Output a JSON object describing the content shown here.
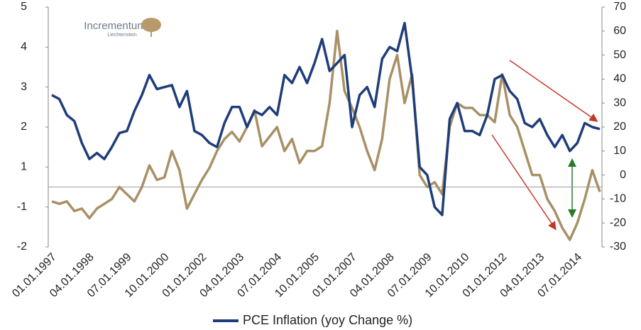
{
  "logo_text": "Incrementum",
  "logo_subtext": "Liechtenstein",
  "chart_data": {
    "type": "line",
    "categories": [
      "01.01.1997",
      null,
      null,
      null,
      null,
      "04.01.1998",
      null,
      null,
      null,
      null,
      "07.01.1999",
      null,
      null,
      null,
      null,
      "10.01.2000",
      null,
      null,
      null,
      null,
      "01.01.2002",
      null,
      null,
      null,
      null,
      "04.01.2003",
      null,
      null,
      null,
      null,
      "07.01.2004",
      null,
      null,
      null,
      null,
      "10.01.2005",
      null,
      null,
      null,
      null,
      "01.01.2007",
      null,
      null,
      null,
      null,
      "04.01.2008",
      null,
      null,
      null,
      null,
      "07.01.2009",
      null,
      null,
      null,
      null,
      "10.01.2010",
      null,
      null,
      null,
      null,
      "01.01.2012",
      null,
      null,
      null,
      null,
      "04.01.2013",
      null,
      null,
      null,
      null,
      "07.01.2014",
      null,
      null,
      null
    ],
    "series": [
      {
        "name": "PCE Inflation (yoy Change %)",
        "color": "#1f3d7a",
        "values": [
          2.8,
          2.7,
          2.3,
          2.15,
          1.6,
          1.2,
          1.35,
          1.2,
          1.5,
          1.85,
          1.9,
          2.4,
          2.8,
          3.3,
          2.95,
          3.0,
          3.05,
          2.5,
          2.9,
          1.9,
          1.8,
          1.6,
          1.5,
          2.1,
          2.5,
          2.5,
          2.0,
          2.4,
          2.3,
          2.5,
          2.3,
          3.3,
          3.1,
          3.5,
          3.1,
          3.6,
          4.2,
          3.4,
          3.6,
          3.8,
          2.0,
          2.8,
          3.0,
          2.5,
          3.7,
          4.0,
          3.9,
          4.6,
          3.2,
          1.0,
          0.6,
          -1.0,
          -1.2,
          2.2,
          2.6,
          1.9,
          1.9,
          1.8,
          2.3,
          3.2,
          3.3,
          2.9,
          2.7,
          2.1,
          2.0,
          2.2,
          1.8,
          1.5,
          1.8,
          1.4,
          1.6,
          2.1,
          2.0,
          1.95
        ]
      },
      {
        "color": "#a89066",
        "axis": "y2",
        "values": [
          -11,
          -12,
          -11,
          -15,
          -14,
          -18,
          -14,
          -12,
          -10,
          -5,
          -8,
          -11,
          -5,
          4,
          -2,
          -1,
          10,
          2,
          -14,
          -8,
          -2,
          3,
          10,
          15,
          18,
          14,
          20,
          27,
          12,
          16,
          20,
          10,
          15,
          5,
          10,
          10,
          12,
          30,
          60,
          35,
          28,
          20,
          10,
          2,
          15,
          40,
          50,
          30,
          42,
          0,
          -5,
          -3,
          -8,
          20,
          30,
          28,
          28,
          25,
          25,
          22,
          42,
          25,
          20,
          10,
          0,
          0,
          -10,
          -15,
          -22,
          -27,
          -20,
          -10,
          2,
          -7
        ]
      }
    ],
    "ylim": [
      -2,
      5
    ],
    "yticks": [
      5,
      4,
      3,
      2,
      1,
      -1,
      -2
    ],
    "y2lim": [
      -30,
      70
    ],
    "y2ticks": [
      70,
      60,
      50,
      40,
      30,
      20,
      10,
      0,
      -10,
      -20,
      -30
    ]
  }
}
